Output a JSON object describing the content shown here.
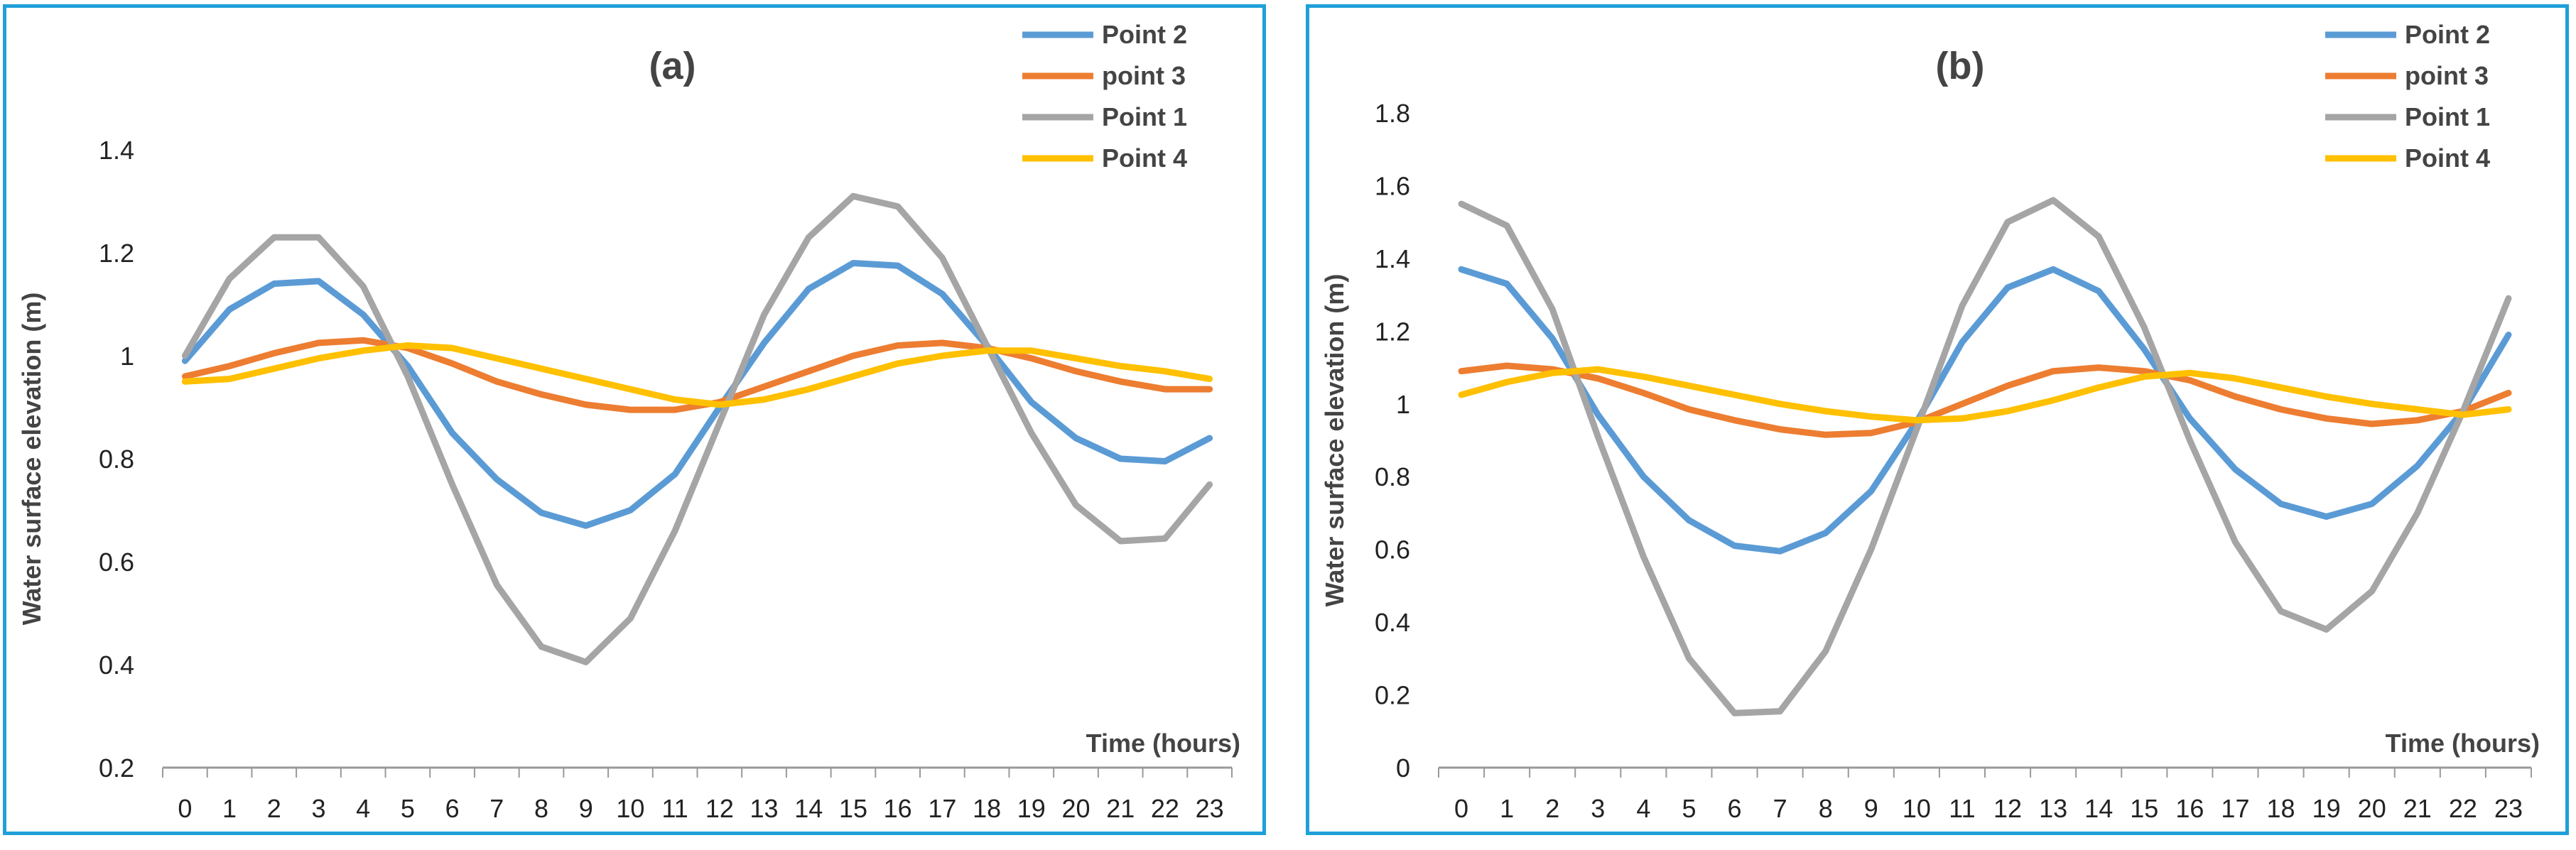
{
  "colors": {
    "Point 2": "#5b9bd5",
    "point 3": "#ed7d31",
    "Point 1": "#a5a5a5",
    "Point 4": "#ffc000",
    "border": "#1fa0d8",
    "axis": "#999999"
  },
  "chart_data": [
    {
      "type": "line",
      "title": "(a)",
      "xlabel": "Time (hours)",
      "ylabel": "Water surface elevation (m)",
      "x": [
        0,
        1,
        2,
        3,
        4,
        5,
        6,
        7,
        8,
        9,
        10,
        11,
        12,
        13,
        14,
        15,
        16,
        17,
        18,
        19,
        20,
        21,
        22,
        23
      ],
      "ylim": [
        0.2,
        1.4
      ],
      "yticks": [
        "0.2",
        "0.4",
        "0.6",
        "0.8",
        "1",
        "1.2",
        "1.4"
      ],
      "legend_position": "top-right",
      "grid": false,
      "series": [
        {
          "name": "Point 2",
          "values": [
            0.99,
            1.09,
            1.14,
            1.145,
            1.08,
            0.98,
            0.85,
            0.76,
            0.695,
            0.67,
            0.7,
            0.77,
            0.9,
            1.025,
            1.13,
            1.18,
            1.175,
            1.12,
            1.02,
            0.91,
            0.84,
            0.8,
            0.795,
            0.84
          ]
        },
        {
          "name": "point 3",
          "values": [
            0.96,
            0.98,
            1.005,
            1.025,
            1.03,
            1.015,
            0.985,
            0.95,
            0.925,
            0.905,
            0.895,
            0.895,
            0.91,
            0.94,
            0.97,
            1.0,
            1.02,
            1.025,
            1.015,
            0.995,
            0.97,
            0.95,
            0.935,
            0.935
          ]
        },
        {
          "name": "Point 1",
          "values": [
            1.0,
            1.15,
            1.23,
            1.23,
            1.135,
            0.96,
            0.75,
            0.555,
            0.435,
            0.405,
            0.49,
            0.66,
            0.87,
            1.08,
            1.23,
            1.31,
            1.29,
            1.19,
            1.02,
            0.85,
            0.71,
            0.64,
            0.645,
            0.75
          ]
        },
        {
          "name": "Point 4",
          "values": [
            0.95,
            0.955,
            0.975,
            0.995,
            1.01,
            1.02,
            1.015,
            0.995,
            0.975,
            0.955,
            0.935,
            0.915,
            0.905,
            0.915,
            0.935,
            0.96,
            0.985,
            1.0,
            1.01,
            1.01,
            0.995,
            0.98,
            0.97,
            0.955
          ]
        }
      ]
    },
    {
      "type": "line",
      "title": "(b)",
      "xlabel": "Time (hours)",
      "ylabel": "Water surface elevation (m)",
      "x": [
        0,
        1,
        2,
        3,
        4,
        5,
        6,
        7,
        8,
        9,
        10,
        11,
        12,
        13,
        14,
        15,
        16,
        17,
        18,
        19,
        20,
        21,
        22,
        23
      ],
      "ylim": [
        0,
        1.8
      ],
      "yticks": [
        "0",
        "0.2",
        "0.4",
        "0.6",
        "0.8",
        "1",
        "1.2",
        "1.4",
        "1.6",
        "1.8"
      ],
      "legend_position": "top-right",
      "grid": false,
      "series": [
        {
          "name": "Point 2",
          "values": [
            1.37,
            1.33,
            1.18,
            0.97,
            0.8,
            0.68,
            0.61,
            0.595,
            0.645,
            0.76,
            0.95,
            1.17,
            1.32,
            1.37,
            1.31,
            1.15,
            0.96,
            0.82,
            0.725,
            0.69,
            0.725,
            0.83,
            0.98,
            1.19
          ]
        },
        {
          "name": "point 3",
          "values": [
            1.09,
            1.105,
            1.095,
            1.07,
            1.03,
            0.985,
            0.955,
            0.93,
            0.915,
            0.92,
            0.95,
            1.0,
            1.05,
            1.09,
            1.1,
            1.09,
            1.065,
            1.02,
            0.985,
            0.96,
            0.945,
            0.955,
            0.98,
            1.03
          ]
        },
        {
          "name": "Point 1",
          "values": [
            1.55,
            1.49,
            1.26,
            0.91,
            0.58,
            0.3,
            0.15,
            0.155,
            0.32,
            0.6,
            0.93,
            1.27,
            1.5,
            1.56,
            1.46,
            1.21,
            0.9,
            0.62,
            0.43,
            0.38,
            0.485,
            0.7,
            0.98,
            1.29
          ]
        },
        {
          "name": "Point 4",
          "values": [
            1.025,
            1.06,
            1.085,
            1.095,
            1.075,
            1.05,
            1.025,
            1.0,
            0.98,
            0.965,
            0.955,
            0.96,
            0.98,
            1.01,
            1.045,
            1.075,
            1.085,
            1.07,
            1.045,
            1.02,
            1.0,
            0.985,
            0.97,
            0.985
          ]
        }
      ]
    }
  ]
}
